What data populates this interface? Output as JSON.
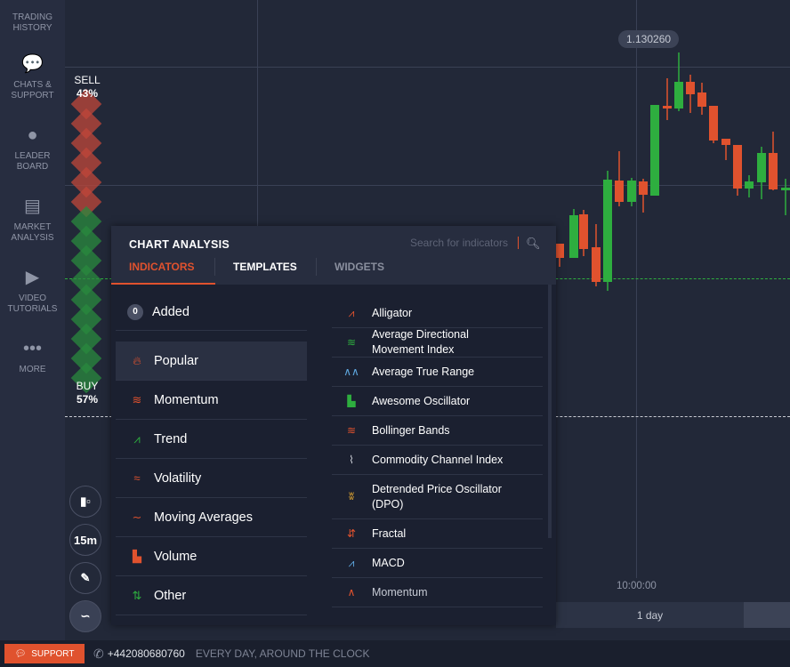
{
  "sidebar": {
    "items": [
      {
        "label1": "TRADING",
        "label2": "HISTORY",
        "icon": "history-icon"
      },
      {
        "label1": "CHATS &",
        "label2": "SUPPORT",
        "icon": "chat-icon"
      },
      {
        "label1": "LEADER",
        "label2": "BOARD",
        "icon": "medal-icon"
      },
      {
        "label1": "MARKET",
        "label2": "ANALYSIS",
        "icon": "newspaper-icon"
      },
      {
        "label1": "VIDEO",
        "label2": "TUTORIALS",
        "icon": "play-icon"
      },
      {
        "label1": "MORE",
        "label2": "",
        "icon": "more-icon"
      }
    ]
  },
  "sentiment": {
    "sell_label": "SELL",
    "sell_pct": "43%",
    "buy_label": "BUY",
    "buy_pct": "57%",
    "sell_value": 43,
    "buy_value": 57,
    "sell_color": "#c0473a",
    "buy_color": "#2a8a3e"
  },
  "chart": {
    "price_label": "1.130260",
    "time_label": "10:00:00",
    "period_label": "1 day",
    "up_color": "#2eae3f",
    "down_color": "#e0522e"
  },
  "chart_controls": {
    "timeframe": "15m"
  },
  "panel": {
    "title": "CHART ANALYSIS",
    "search_placeholder": "Search for indicators",
    "tabs": [
      "INDICATORS",
      "TEMPLATES",
      "WIDGETS"
    ],
    "active_tab": "INDICATORS",
    "added": {
      "count": "0",
      "label": "Added"
    },
    "categories": [
      "Popular",
      "Momentum",
      "Trend",
      "Volatility",
      "Moving Averages",
      "Volume",
      "Other"
    ],
    "selected_category": "Popular",
    "indicators": [
      "Alligator",
      "Average Directional Movement Index",
      "Average True Range",
      "Awesome Oscillator",
      "Bollinger Bands",
      "Commodity Channel Index",
      "Detrended Price Oscillator (DPO)",
      "Fractal",
      "MACD",
      "Momentum"
    ]
  },
  "footer": {
    "support": "SUPPORT",
    "phone": "+442080680760",
    "hours": "EVERY DAY, AROUND THE CLOCK"
  },
  "accent": "#e0522e"
}
